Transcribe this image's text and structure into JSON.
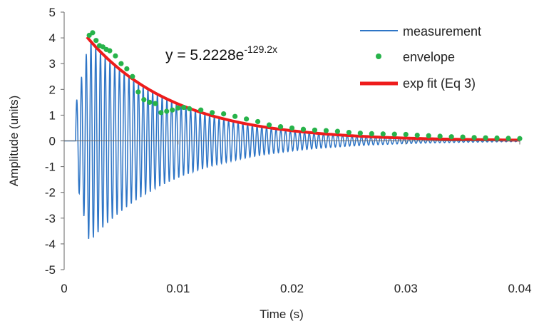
{
  "chart_data": {
    "type": "line",
    "title": "",
    "xlabel": "Time (s)",
    "ylabel": "Amplitude (units)",
    "xlim": [
      0,
      0.04
    ],
    "ylim": [
      -5,
      5
    ],
    "x_ticks": [
      0,
      0.01,
      0.02,
      0.03,
      0.04
    ],
    "x_tick_labels": [
      "0",
      "0.01",
      "0.02",
      "0.03",
      "0.04"
    ],
    "y_ticks": [
      5,
      4,
      3,
      2,
      1,
      0,
      -1,
      -2,
      -3,
      -4,
      -5
    ],
    "y_tick_labels": [
      "5",
      "4",
      "3",
      "2",
      "1",
      "0",
      "-1",
      "-2",
      "-3",
      "-4",
      "-5"
    ],
    "annotation": {
      "prefix": "y = 5.2228e",
      "exponent": "-129.2x"
    },
    "legend": {
      "position": "top-right",
      "entries": [
        {
          "label": "measurement",
          "style": "line",
          "color": "#2e75c6"
        },
        {
          "label": "envelope",
          "style": "marker",
          "color": "#27b34a"
        },
        {
          "label": "exp fit (Eq 3)",
          "style": "thick-line",
          "color": "#ee1c1c"
        }
      ]
    },
    "series": [
      {
        "name": "measurement",
        "color": "#2e75c6",
        "signal": {
          "onset_s": 0.001,
          "peak_s": 0.0022,
          "frequency_hz": 2400,
          "approx_amplitude_at_peak": 4.0,
          "decay_per_s": 129.2
        }
      },
      {
        "name": "envelope",
        "color": "#27b34a",
        "x": [
          0.0022,
          0.0025,
          0.0028,
          0.0031,
          0.0034,
          0.0037,
          0.004,
          0.0045,
          0.005,
          0.0055,
          0.006,
          0.0065,
          0.007,
          0.0075,
          0.008,
          0.0085,
          0.009,
          0.0095,
          0.01,
          0.0105,
          0.011,
          0.012,
          0.013,
          0.014,
          0.015,
          0.016,
          0.017,
          0.018,
          0.019,
          0.02,
          0.021,
          0.022,
          0.023,
          0.024,
          0.025,
          0.026,
          0.027,
          0.028,
          0.029,
          0.03,
          0.031,
          0.032,
          0.033,
          0.034,
          0.035,
          0.036,
          0.037,
          0.038,
          0.039,
          0.04
        ],
        "values": [
          4.1,
          4.2,
          3.9,
          3.7,
          3.65,
          3.55,
          3.5,
          3.3,
          3.0,
          2.8,
          2.5,
          1.9,
          1.6,
          1.5,
          1.45,
          1.1,
          1.15,
          1.2,
          1.28,
          1.3,
          1.25,
          1.2,
          1.1,
          1.05,
          0.95,
          0.85,
          0.75,
          0.62,
          0.55,
          0.5,
          0.45,
          0.42,
          0.4,
          0.37,
          0.33,
          0.3,
          0.28,
          0.27,
          0.26,
          0.25,
          0.22,
          0.2,
          0.18,
          0.16,
          0.15,
          0.13,
          0.12,
          0.11,
          0.1,
          0.09
        ]
      },
      {
        "name": "exp fit (Eq 3)",
        "color": "#ee1c1c",
        "equation": {
          "a": 5.2228,
          "b": -129.2
        },
        "x_range": [
          0.002,
          0.04
        ]
      }
    ]
  }
}
